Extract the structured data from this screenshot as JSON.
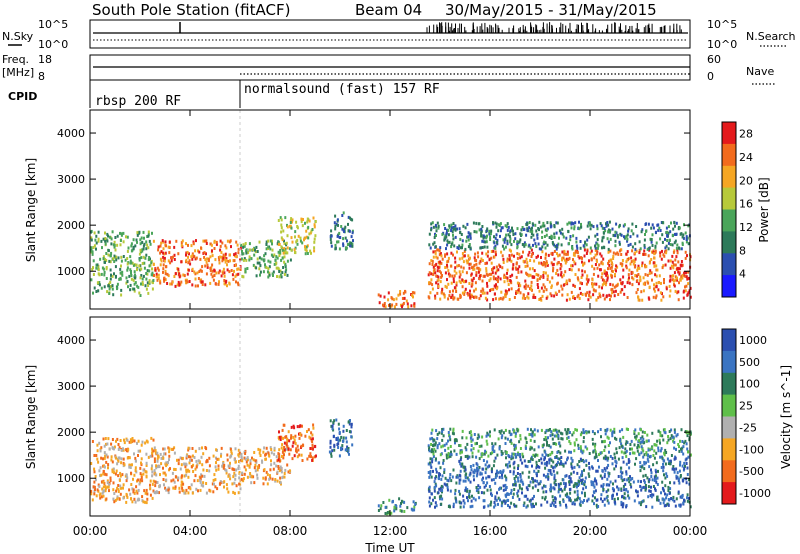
{
  "header": {
    "station": "South Pole Station (fitACF)",
    "beam": "Beam 04",
    "date_range": "30/May/2015 - 31/May/2015"
  },
  "nsky_panel": {
    "left_label": "N.Sky",
    "right_label": "N.Search",
    "left_ticks": [
      "10^5",
      "10^0"
    ],
    "right_ticks": [
      "10^5",
      "10^0"
    ]
  },
  "freq_panel": {
    "left_label_1": "Freq.",
    "left_label_2": "[MHz]",
    "right_label": "Nave",
    "left_ticks": [
      "18",
      "8"
    ],
    "right_ticks": [
      "60",
      "0"
    ]
  },
  "cpid_panel": {
    "label": "CPID",
    "modes": [
      {
        "name": "rbsp 200 RF",
        "start": "00:00"
      },
      {
        "name": "normalsound (fast) 157 RF",
        "start": "06:00"
      }
    ]
  },
  "chart_data": [
    {
      "type": "heatmap",
      "name": "power",
      "ylabel": "Slant Range [km]",
      "xlabel": "Time UT",
      "x_ticks": [
        "00:00",
        "04:00",
        "08:00",
        "12:00",
        "16:00",
        "20:00",
        "00:00"
      ],
      "xlim_hours": [
        0,
        24
      ],
      "ylim": [
        180,
        4500
      ],
      "y_ticks": [
        1000,
        2000,
        3000,
        4000
      ],
      "colorbar": {
        "label": "Power [dB]",
        "ticks": [
          4,
          8,
          12,
          16,
          20,
          24,
          28
        ],
        "range": [
          0,
          30
        ],
        "colors": [
          "#1a1aff",
          "#2b4fb0",
          "#2d7a5a",
          "#4aa55a",
          "#b7c93a",
          "#f5a623",
          "#f26b1d",
          "#e41a1c"
        ]
      },
      "scatter_regions": [
        {
          "t0": 0.0,
          "t1": 2.5,
          "r0": 500,
          "r1": 1900,
          "p": 12
        },
        {
          "t0": 2.5,
          "t1": 6.0,
          "r0": 700,
          "r1": 1700,
          "p": 24
        },
        {
          "t0": 6.0,
          "t1": 8.0,
          "r0": 900,
          "r1": 1700,
          "p": 12
        },
        {
          "t0": 7.5,
          "t1": 9.0,
          "r0": 1400,
          "r1": 2200,
          "p": 18
        },
        {
          "t0": 9.5,
          "t1": 10.5,
          "r0": 1500,
          "r1": 2300,
          "p": 10
        },
        {
          "t0": 11.5,
          "t1": 13.0,
          "r0": 250,
          "r1": 600,
          "p": 24
        },
        {
          "t0": 13.5,
          "t1": 24.0,
          "r0": 400,
          "r1": 1500,
          "p": 26
        },
        {
          "t0": 13.5,
          "t1": 24.0,
          "r0": 1500,
          "r1": 2100,
          "p": 8
        }
      ]
    },
    {
      "type": "heatmap",
      "name": "velocity",
      "ylabel": "Slant Range [km]",
      "xlabel": "Time UT",
      "x_ticks": [
        "00:00",
        "04:00",
        "08:00",
        "12:00",
        "16:00",
        "20:00",
        "00:00"
      ],
      "xlim_hours": [
        0,
        24
      ],
      "ylim": [
        180,
        4500
      ],
      "y_ticks": [
        1000,
        2000,
        3000,
        4000
      ],
      "colorbar": {
        "label": "Velocity [m s^-1]",
        "ticks": [
          "1000",
          "500",
          "100",
          "25",
          "-25",
          "-100",
          "-500",
          "-1000"
        ],
        "colors": [
          "#2b4fb0",
          "#3a74c2",
          "#2d7a5a",
          "#5fbf4a",
          "#b0b0b0",
          "#f5a623",
          "#f26b1d",
          "#e41a1c"
        ]
      },
      "scatter_regions": [
        {
          "t0": 0.0,
          "t1": 2.5,
          "r0": 500,
          "r1": 1900,
          "v": "-100"
        },
        {
          "t0": 2.5,
          "t1": 6.0,
          "r0": 700,
          "r1": 1700,
          "v": "-100"
        },
        {
          "t0": 6.0,
          "t1": 8.0,
          "r0": 900,
          "r1": 1700,
          "v": "-100"
        },
        {
          "t0": 7.5,
          "t1": 9.0,
          "r0": 1400,
          "r1": 2200,
          "v": "-500"
        },
        {
          "t0": 9.5,
          "t1": 10.5,
          "r0": 1500,
          "r1": 2300,
          "v": "500"
        },
        {
          "t0": 11.5,
          "t1": 13.0,
          "r0": 250,
          "r1": 600,
          "v": "100"
        },
        {
          "t0": 13.5,
          "t1": 24.0,
          "r0": 400,
          "r1": 1500,
          "v": "500"
        },
        {
          "t0": 13.5,
          "t1": 24.0,
          "r0": 1500,
          "r1": 2100,
          "v": "100"
        }
      ]
    }
  ]
}
